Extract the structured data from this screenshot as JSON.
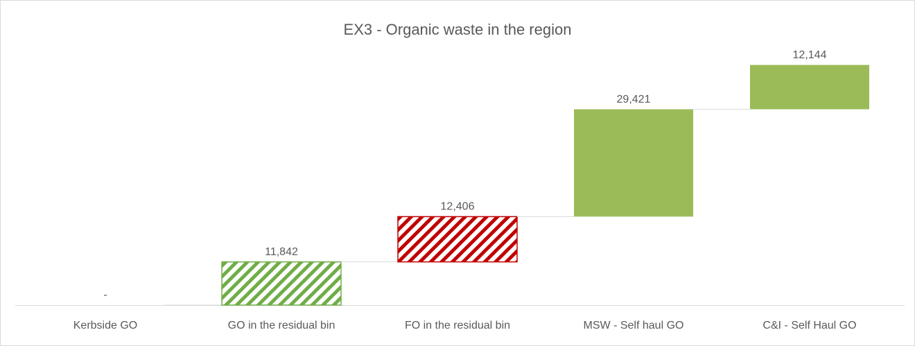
{
  "chart_data": {
    "type": "waterfall",
    "title": "EX3 - Organic waste in the region",
    "categories": [
      "Kerbside GO",
      "GO in the residual bin",
      "FO in the residual bin",
      "MSW - Self haul GO",
      "C&I - Self Haul GO"
    ],
    "values": [
      0,
      11842,
      12406,
      29421,
      12144
    ],
    "value_labels": [
      "-",
      "11,842",
      "12,406",
      "29,421",
      "12,144"
    ],
    "colors": [
      "#9bbb59",
      "#70ad47",
      "#c00000",
      "#9bbb59",
      "#9bbb59"
    ],
    "hatched": [
      false,
      true,
      true,
      false,
      false
    ],
    "ylim": [
      0,
      80000
    ]
  }
}
